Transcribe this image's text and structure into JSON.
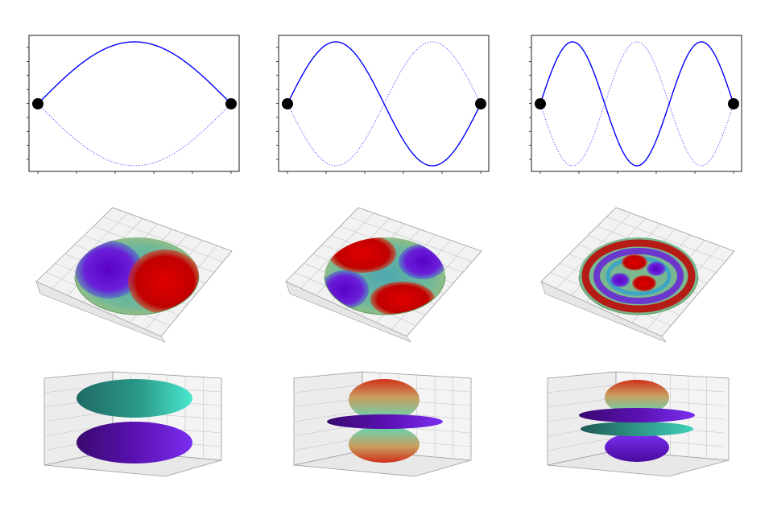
{
  "figure": {
    "rows": [
      {
        "kind": "string-modes",
        "panels": [
          {
            "name": "mode-1",
            "half_waves": 1
          },
          {
            "name": "mode-2",
            "half_waves": 2
          },
          {
            "name": "mode-3",
            "half_waves": 3
          }
        ]
      },
      {
        "kind": "membrane-modes",
        "panels": [
          {
            "name": "membrane-mode-1",
            "pattern": "two-lobes"
          },
          {
            "name": "membrane-mode-2",
            "pattern": "four-lobes"
          },
          {
            "name": "membrane-mode-3",
            "pattern": "rings-and-lobes"
          }
        ]
      },
      {
        "kind": "orbital-shapes",
        "panels": [
          {
            "name": "orbital-1",
            "pattern": "two-lobes"
          },
          {
            "name": "orbital-2",
            "pattern": "two-lobes-one-torus"
          },
          {
            "name": "orbital-3",
            "pattern": "two-lobes-two-tori"
          }
        ]
      }
    ],
    "colors": {
      "string_solid": "#0000ff",
      "string_dotted": "#5555ff",
      "endpoint": "#000000",
      "frame": "#000000",
      "grid": "#b8b8b8",
      "pane": "#eeeeee",
      "positive": "#cc0000",
      "negative": "#6a00d0",
      "neutral": "#6fb89a"
    }
  }
}
